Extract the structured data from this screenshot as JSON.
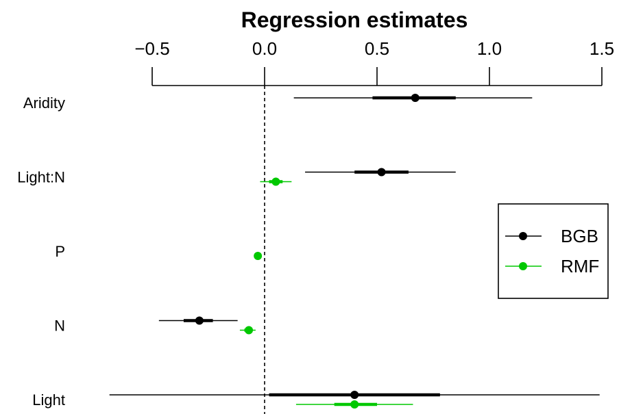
{
  "chart_data": {
    "type": "forest",
    "title": "Regression estimates",
    "xlim": [
      -0.5,
      1.5
    ],
    "ticks": [
      {
        "value": -0.5,
        "label": "−0.5"
      },
      {
        "value": 0.0,
        "label": "0.0"
      },
      {
        "value": 0.5,
        "label": "0.5"
      },
      {
        "value": 1.0,
        "label": "1.0"
      },
      {
        "value": 1.5,
        "label": "1.5"
      }
    ],
    "axis_position": "top",
    "reference_line": 0,
    "categories": [
      "Aridity",
      "Light:N",
      "P",
      "N",
      "Light"
    ],
    "series": [
      {
        "name": "BGB",
        "color": "#000000",
        "points": [
          {
            "category": "Aridity",
            "estimate": 0.67,
            "inner": [
              0.48,
              0.85
            ],
            "outer": [
              0.13,
              1.19
            ]
          },
          {
            "category": "Light:N",
            "estimate": 0.52,
            "inner": [
              0.4,
              0.64
            ],
            "outer": [
              0.18,
              0.85
            ]
          },
          {
            "category": "N",
            "estimate": -0.29,
            "inner": [
              -0.36,
              -0.23
            ],
            "outer": [
              -0.47,
              -0.12
            ]
          },
          {
            "category": "Light",
            "estimate": 0.4,
            "inner": [
              0.02,
              0.78
            ],
            "outer": [
              -0.69,
              1.49
            ]
          }
        ]
      },
      {
        "name": "RMF",
        "color": "#00c800",
        "points": [
          {
            "category": "Light:N",
            "estimate": 0.05,
            "inner": [
              0.02,
              0.08
            ],
            "outer": [
              -0.02,
              0.12
            ]
          },
          {
            "category": "P",
            "estimate": -0.03,
            "inner": [
              -0.04,
              -0.02
            ],
            "outer": [
              -0.04,
              -0.02
            ]
          },
          {
            "category": "N",
            "estimate": -0.07,
            "inner": [
              -0.09,
              -0.06
            ],
            "outer": [
              -0.11,
              -0.04
            ]
          },
          {
            "category": "Light",
            "estimate": 0.4,
            "inner": [
              0.31,
              0.5
            ],
            "outer": [
              0.14,
              0.66
            ]
          }
        ]
      }
    ],
    "legend": {
      "position": "right",
      "entries": [
        {
          "label": "BGB",
          "color": "#000000"
        },
        {
          "label": "RMF",
          "color": "#00c800"
        }
      ]
    }
  }
}
